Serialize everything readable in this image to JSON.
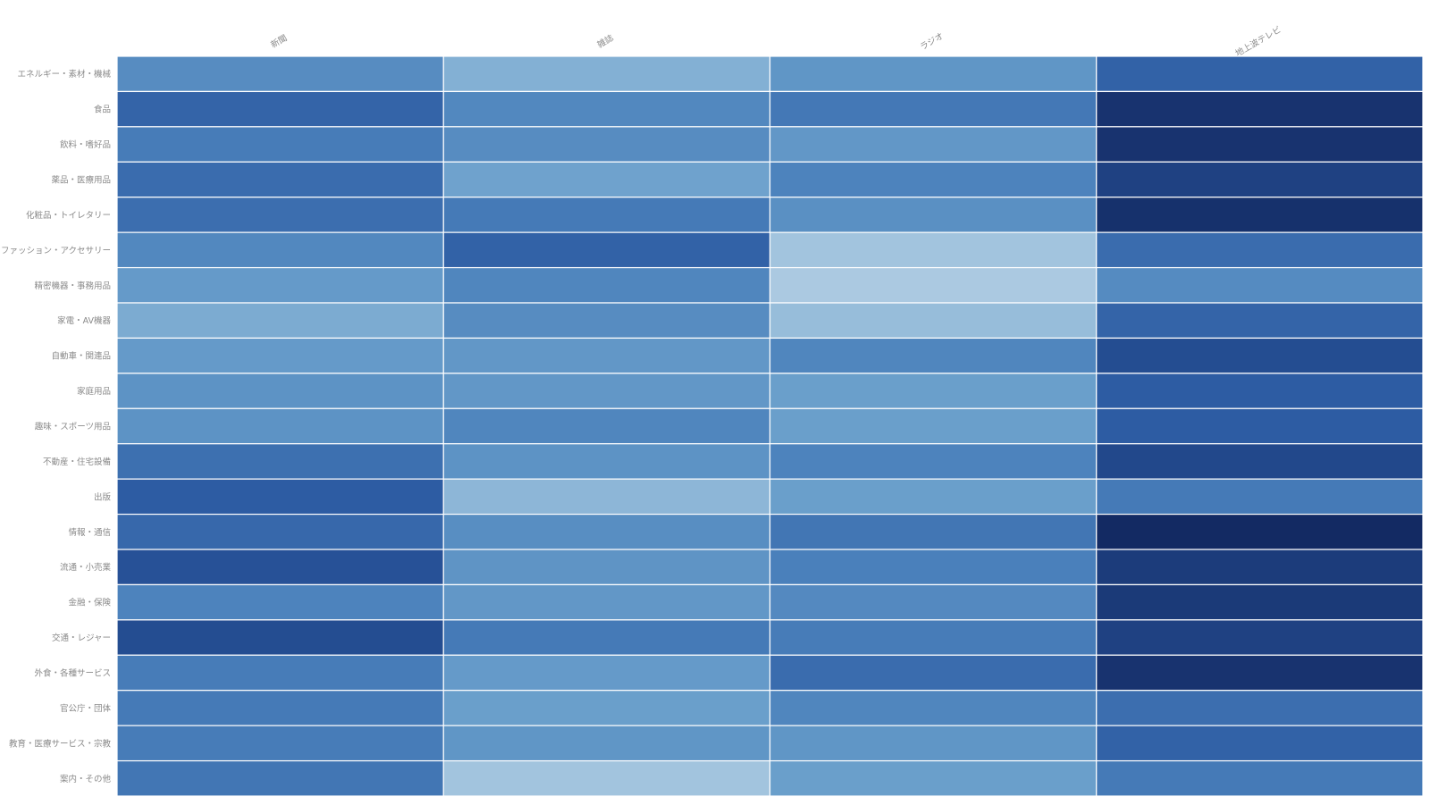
{
  "chart_data": {
    "type": "heatmap",
    "title": "",
    "xlabel": "",
    "ylabel": "",
    "columns": [
      "新聞",
      "雑誌",
      "ラジオ",
      "地上波テレビ"
    ],
    "rows": [
      "エネルギー・素材・機械",
      "食品",
      "飲料・嗜好品",
      "薬品・医療用品",
      "化粧品・トイレタリー",
      "ファッション・アクセサリー",
      "精密機器・事務用品",
      "家電・AV機器",
      "自動車・関連品",
      "家庭用品",
      "趣味・スポーツ用品",
      "不動産・住宅設備",
      "出版",
      "情報・通信",
      "流通・小売業",
      "金融・保険",
      "交通・レジャー",
      "外食・各種サービス",
      "官公庁・団体",
      "教育・医療サービス・宗教",
      "案内・その他"
    ],
    "values": [
      [
        0.52,
        0.3,
        0.46,
        0.75
      ],
      [
        0.74,
        0.55,
        0.64,
        0.96
      ],
      [
        0.62,
        0.52,
        0.45,
        0.96
      ],
      [
        0.7,
        0.38,
        0.58,
        0.9
      ],
      [
        0.69,
        0.63,
        0.5,
        0.97
      ],
      [
        0.55,
        0.75,
        0.17,
        0.7
      ],
      [
        0.43,
        0.56,
        0.13,
        0.53
      ],
      [
        0.33,
        0.52,
        0.22,
        0.74
      ],
      [
        0.43,
        0.45,
        0.56,
        0.85
      ],
      [
        0.48,
        0.45,
        0.4,
        0.78
      ],
      [
        0.48,
        0.56,
        0.4,
        0.78
      ],
      [
        0.68,
        0.48,
        0.58,
        0.87
      ],
      [
        0.78,
        0.26,
        0.4,
        0.63
      ],
      [
        0.72,
        0.51,
        0.65,
        1.0
      ],
      [
        0.83,
        0.47,
        0.6,
        0.92
      ],
      [
        0.58,
        0.45,
        0.54,
        0.93
      ],
      [
        0.85,
        0.63,
        0.62,
        0.9
      ],
      [
        0.62,
        0.43,
        0.7,
        0.96
      ],
      [
        0.63,
        0.4,
        0.56,
        0.69
      ],
      [
        0.62,
        0.46,
        0.46,
        0.75
      ],
      [
        0.65,
        0.17,
        0.4,
        0.63
      ]
    ],
    "colorscale": [
      "#ffffff",
      "#0f2055"
    ],
    "grid": false,
    "legend": "none"
  }
}
